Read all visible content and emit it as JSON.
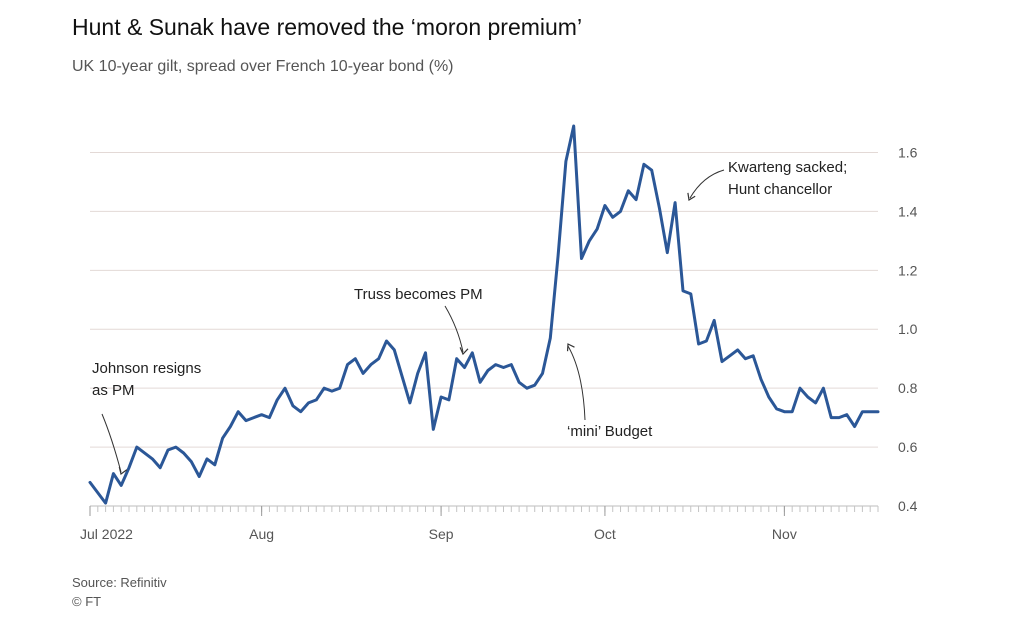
{
  "chart_data": {
    "type": "line",
    "title": "Hunt & Sunak have removed the ‘moron premium’",
    "subtitle": "UK 10-year gilt, spread over French 10-year bond (%)",
    "ylim": [
      0.4,
      1.7
    ],
    "yticks": [
      0.4,
      0.6,
      0.8,
      1.0,
      1.2,
      1.4,
      1.6
    ],
    "ytick_labels": [
      "0.4",
      "0.6",
      "0.8",
      "1.0",
      "1.2",
      "1.4",
      "1.6"
    ],
    "xlim": [
      0,
      101
    ],
    "xticks": [
      {
        "label": "Jul 2022",
        "x": 0
      },
      {
        "label": "Aug",
        "x": 22
      },
      {
        "label": "Sep",
        "x": 45
      },
      {
        "label": "Oct",
        "x": 66
      },
      {
        "label": "Nov",
        "x": 89
      }
    ],
    "grid": true,
    "line_color": "#2b5797",
    "series": [
      {
        "x": [
          0,
          2,
          3,
          4,
          5,
          6,
          8,
          9,
          10,
          11,
          12,
          13,
          14,
          15,
          16,
          17,
          18,
          19,
          20,
          21,
          22,
          23,
          24,
          25,
          26,
          27,
          28,
          29,
          30,
          31,
          32,
          33,
          34,
          35,
          36,
          37,
          38,
          39,
          40,
          41,
          42,
          43,
          44,
          45,
          46,
          47,
          48,
          49,
          50,
          51,
          52,
          53,
          54,
          55,
          56,
          57,
          58,
          59,
          60,
          61,
          62,
          63,
          64,
          65,
          66,
          67,
          68,
          69,
          70,
          71,
          72,
          73,
          74,
          75,
          76,
          77,
          78,
          79,
          80,
          81,
          82,
          83,
          84,
          85,
          86,
          87,
          88,
          89,
          90,
          91,
          92,
          93,
          94,
          95,
          96,
          97,
          98,
          99,
          100,
          101
        ],
        "y": [
          0.48,
          0.41,
          0.51,
          0.47,
          0.53,
          0.6,
          0.56,
          0.53,
          0.59,
          0.6,
          0.58,
          0.55,
          0.5,
          0.56,
          0.54,
          0.63,
          0.67,
          0.72,
          0.69,
          0.7,
          0.71,
          0.7,
          0.76,
          0.8,
          0.74,
          0.72,
          0.75,
          0.76,
          0.8,
          0.79,
          0.8,
          0.88,
          0.9,
          0.85,
          0.88,
          0.9,
          0.96,
          0.93,
          0.84,
          0.75,
          0.85,
          0.92,
          0.66,
          0.77,
          0.76,
          0.9,
          0.87,
          0.92,
          0.82,
          0.86,
          0.88,
          0.87,
          0.88,
          0.82,
          0.8,
          0.81,
          0.85,
          0.97,
          1.25,
          1.57,
          1.69,
          1.24,
          1.3,
          1.34,
          1.42,
          1.38,
          1.4,
          1.47,
          1.44,
          1.56,
          1.54,
          1.41,
          1.26,
          1.43,
          1.13,
          1.12,
          0.95,
          0.96,
          1.03,
          0.89,
          0.91,
          0.93,
          0.9,
          0.91,
          0.83,
          0.77,
          0.73,
          0.72,
          0.72,
          0.8,
          0.77,
          0.75,
          0.8,
          0.7,
          0.7,
          0.71,
          0.67,
          0.72,
          0.72,
          0.72
        ]
      }
    ],
    "annotations": [
      {
        "lines": [
          "Johnson resigns",
          "as PM"
        ],
        "x": 4,
        "y": 0.47
      },
      {
        "lines": [
          "Truss becomes PM"
        ],
        "x": 47,
        "y": 0.9
      },
      {
        "lines": [
          "‘mini’ Budget"
        ],
        "x": 57,
        "y": 0.94
      },
      {
        "lines": [
          "Kwarteng sacked;",
          "Hunt chancellor"
        ],
        "x": 74,
        "y": 1.44
      }
    ]
  },
  "source": "Source: Refinitiv",
  "copyright": "© FT"
}
